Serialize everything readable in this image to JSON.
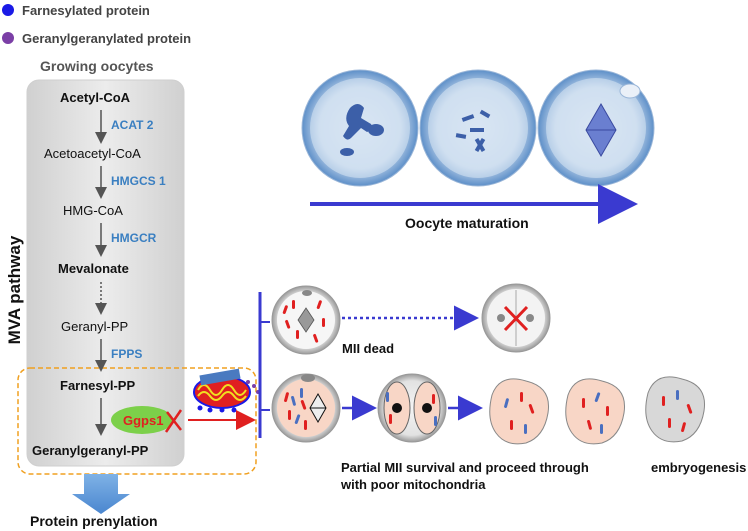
{
  "legend": {
    "farnesylated": {
      "label": "Farnesylated protein",
      "color": "#1a1ae6"
    },
    "geranylgeranylated": {
      "label": "Geranylgeranylated protein",
      "color": "#7b3fa6"
    }
  },
  "pathway": {
    "header": "Growing oocytes",
    "side_label": "MVA pathway",
    "steps": [
      {
        "label": "Acetyl-CoA",
        "bold": true
      },
      {
        "label": "Acetoacetyl-CoA",
        "bold": false
      },
      {
        "label": "HMG-CoA",
        "bold": false
      },
      {
        "label": "Mevalonate",
        "bold": true
      },
      {
        "label": "Geranyl-PP",
        "bold": false
      },
      {
        "label": "Farnesyl-PP",
        "bold": true
      },
      {
        "label": "Geranylgeranyl-PP",
        "bold": true
      }
    ],
    "enzymes": [
      "ACAT 2",
      "HMGCS 1",
      "HMGCR",
      "FPPS"
    ],
    "knockout_enzyme": "Ggps1",
    "output_label": "Protein prenylation"
  },
  "maturation": {
    "label": "Oocyte maturation"
  },
  "outcomes": {
    "dead_label": "MII dead",
    "survival_label_line1": "Partial MII survival and proceed through",
    "survival_label_line2": "with poor mitochondria",
    "embryogenesis_label": "embryogenesis"
  },
  "colors": {
    "enzyme_text": "#3a7fc1",
    "box_fill": "#e6e6e6",
    "dashed_border": "#f0a020",
    "arrow_blue": "#3a3ad0",
    "knockout_fill": "#7cd04a",
    "knockout_text": "#e02020",
    "red_mark": "#e02020",
    "embryo_fill": "#f8d6c6"
  }
}
